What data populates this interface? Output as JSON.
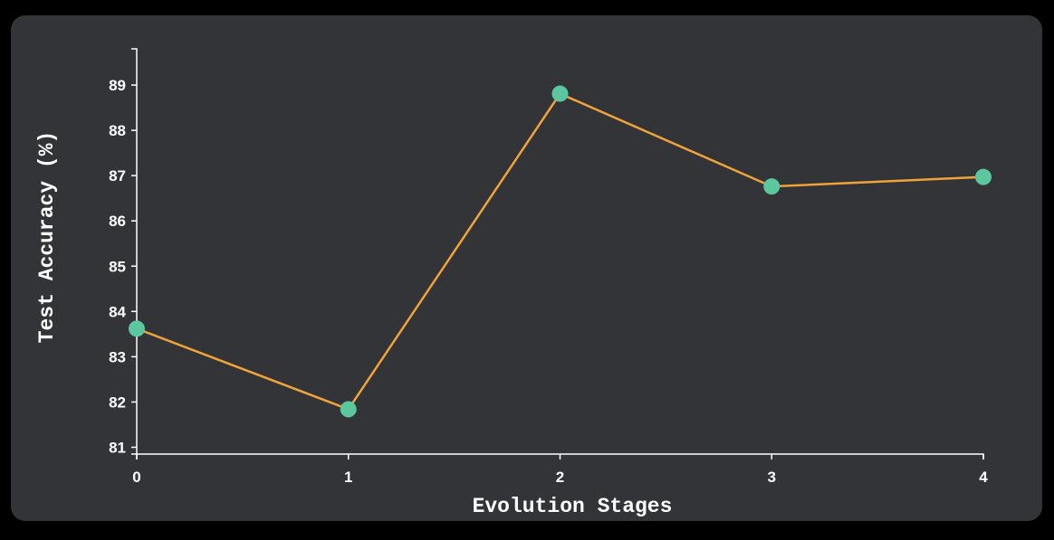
{
  "chart_data": {
    "type": "line",
    "title": "",
    "xlabel": "Evolution Stages",
    "ylabel": "Test Accuracy (%)",
    "x": [
      0,
      1,
      2,
      3,
      4
    ],
    "y": [
      83.62,
      81.84,
      88.81,
      86.76,
      86.97
    ],
    "xticks": [
      "0",
      "1",
      "2",
      "3",
      "4"
    ],
    "yticks": [
      "81",
      "82",
      "83",
      "84",
      "85",
      "86",
      "87",
      "88",
      "89"
    ],
    "xlim": [
      0,
      4
    ],
    "ylim": [
      80.85,
      89.8
    ],
    "grid": false,
    "line_color": "#f0a33a",
    "marker_color": "#5cc79e",
    "background_color": "#323437",
    "text_color": "#ffffff"
  }
}
